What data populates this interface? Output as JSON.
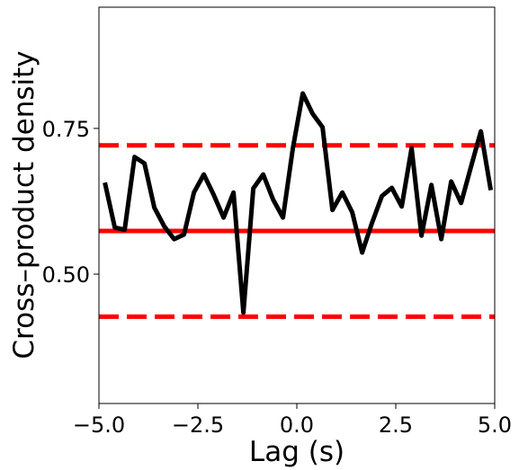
{
  "chart_data": {
    "type": "line",
    "xlabel": "Lag (s)",
    "ylabel": "Cross–product density",
    "xlim": [
      -5,
      5
    ],
    "ylim": [
      0.278,
      0.958
    ],
    "xticks": [
      {
        "value": -5,
        "label": "−5.0"
      },
      {
        "value": -2.5,
        "label": "−2.5"
      },
      {
        "value": 0,
        "label": "0.0"
      },
      {
        "value": 2.5,
        "label": "2.5"
      },
      {
        "value": 5,
        "label": "5.0"
      }
    ],
    "yticks": [
      {
        "value": 0.5,
        "label": "0.50"
      },
      {
        "value": 0.75,
        "label": "0.75"
      }
    ],
    "x": [
      -4.85,
      -4.6,
      -4.35,
      -4.1,
      -3.85,
      -3.6,
      -3.35,
      -3.1,
      -2.85,
      -2.6,
      -2.35,
      -2.1,
      -1.85,
      -1.6,
      -1.35,
      -1.1,
      -0.85,
      -0.6,
      -0.35,
      -0.1,
      0.15,
      0.4,
      0.65,
      0.9,
      1.15,
      1.4,
      1.65,
      1.9,
      2.15,
      2.4,
      2.65,
      2.9,
      3.15,
      3.4,
      3.65,
      3.9,
      4.15,
      4.4,
      4.65,
      4.9
    ],
    "series": [
      {
        "color": "#000000",
        "values": [
          0.657,
          0.58,
          0.576,
          0.701,
          0.69,
          0.614,
          0.582,
          0.56,
          0.568,
          0.64,
          0.671,
          0.636,
          0.597,
          0.64,
          0.434,
          0.647,
          0.671,
          0.628,
          0.597,
          0.716,
          0.81,
          0.775,
          0.752,
          0.61,
          0.64,
          0.606,
          0.537,
          0.588,
          0.634,
          0.648,
          0.616,
          0.716,
          0.566,
          0.653,
          0.56,
          0.659,
          0.622,
          0.684,
          0.745,
          0.644
        ]
      }
    ],
    "hlines": [
      {
        "value": 0.574,
        "style": "solid",
        "color": "#ff0000"
      },
      {
        "value": 0.721,
        "style": "dashed",
        "color": "#ff0000"
      },
      {
        "value": 0.427,
        "style": "dashed",
        "color": "#ff0000"
      }
    ]
  }
}
